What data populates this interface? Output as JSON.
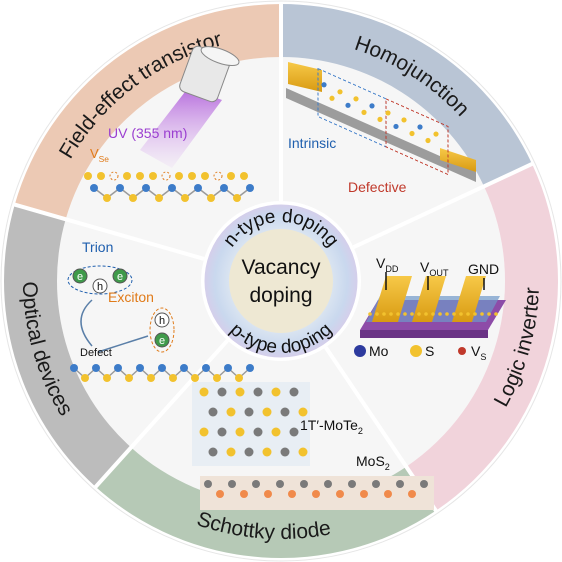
{
  "center": {
    "lines": [
      "Vacancy",
      "doping"
    ],
    "n_ring": "n-type doping",
    "p_ring": "p-type doping"
  },
  "segments": [
    {
      "label": "Field-effect transistor",
      "uv": "UV (355 nm)",
      "vacancy": {
        "main": "V",
        "sub": "Se"
      }
    },
    {
      "label": "Homojunction",
      "intrinsic": "Intrinsic",
      "defective": "Defective"
    },
    {
      "label": "Logic inverter",
      "terminals": [
        {
          "main": "V",
          "sub": "DD"
        },
        {
          "main": "V",
          "sub": "OUT"
        },
        {
          "main": "GND"
        }
      ],
      "legend": [
        {
          "main": "Mo"
        },
        {
          "main": "S"
        },
        {
          "main": "V",
          "sub": "S"
        }
      ]
    },
    {
      "label": "Schottky diode",
      "top": {
        "main": "1T′-MoTe",
        "sub": "2"
      },
      "bottom": {
        "main": "MoS",
        "sub": "2"
      }
    },
    {
      "label": "Optical devices",
      "trion": "Trion",
      "exciton": "Exciton",
      "defect": "Defect",
      "trion_particles": [
        "e",
        "h",
        "e"
      ],
      "exciton_particles": [
        "h",
        "e"
      ]
    }
  ]
}
